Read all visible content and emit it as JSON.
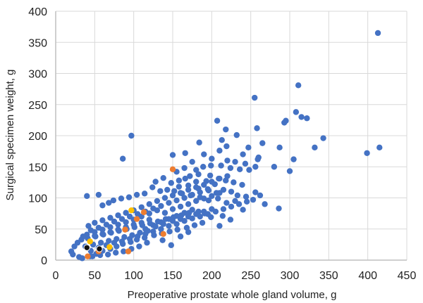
{
  "chart_data": {
    "type": "scatter",
    "title": "",
    "xlabel": "Preoperative prostate whole gland volume, g",
    "ylabel": "Surgical specimen weight, g",
    "xlim": [
      0,
      450
    ],
    "ylim": [
      0,
      400
    ],
    "xticks": [
      0,
      50,
      100,
      150,
      200,
      250,
      300,
      350,
      400,
      450
    ],
    "yticks": [
      0,
      50,
      100,
      150,
      200,
      250,
      300,
      350,
      400
    ],
    "grid": true,
    "legend": "none",
    "colors": {
      "series1": "#4472c4",
      "series2": "#ed7d31",
      "series3": "#ffc000",
      "series4": "#111111",
      "grid": "#d9d9d9",
      "axis": "#bfbfbf"
    },
    "series": [
      {
        "color": "#4472c4",
        "points": [
          [
            413,
            365
          ],
          [
            311,
            281
          ],
          [
            255,
            261
          ],
          [
            308,
            238
          ],
          [
            315,
            230
          ],
          [
            322,
            228
          ],
          [
            295,
            224
          ],
          [
            293,
            221
          ],
          [
            207,
            224
          ],
          [
            218,
            210
          ],
          [
            258,
            212
          ],
          [
            343,
            196
          ],
          [
            332,
            181
          ],
          [
            399,
            172
          ],
          [
            415,
            181
          ],
          [
            97,
            200
          ],
          [
            232,
            201
          ],
          [
            213,
            193
          ],
          [
            184,
            189
          ],
          [
            219,
            183
          ],
          [
            210,
            176
          ],
          [
            265,
            188
          ],
          [
            287,
            181
          ],
          [
            247,
            181
          ],
          [
            260,
            165
          ],
          [
            305,
            162
          ],
          [
            259,
            162
          ],
          [
            240,
            170
          ],
          [
            243,
            155
          ],
          [
            150,
            169
          ],
          [
            166,
            172
          ],
          [
            190,
            170
          ],
          [
            200,
            163
          ],
          [
            220,
            160
          ],
          [
            230,
            158
          ],
          [
            175,
            158
          ],
          [
            189,
            150
          ],
          [
            199,
            152
          ],
          [
            212,
            152
          ],
          [
            224,
            148
          ],
          [
            236,
            146
          ],
          [
            248,
            145
          ],
          [
            256,
            150
          ],
          [
            280,
            150
          ],
          [
            300,
            143
          ],
          [
            180,
            145
          ],
          [
            165,
            148
          ],
          [
            155,
            142
          ],
          [
            172,
            135
          ],
          [
            183,
            138
          ],
          [
            198,
            136
          ],
          [
            209,
            131
          ],
          [
            218,
            128
          ],
          [
            228,
            125
          ],
          [
            239,
            121
          ],
          [
            204,
            122
          ],
          [
            193,
            127
          ],
          [
            180,
            126
          ],
          [
            166,
            131
          ],
          [
            158,
            128
          ],
          [
            148,
            124
          ],
          [
            138,
            132
          ],
          [
            128,
            126
          ],
          [
            158,
            118
          ],
          [
            170,
            120
          ],
          [
            183,
            115
          ],
          [
            196,
            112
          ],
          [
            206,
            108
          ],
          [
            215,
            113
          ],
          [
            225,
            110
          ],
          [
            233,
            104
          ],
          [
            244,
            102
          ],
          [
            253,
            97
          ],
          [
            262,
            104
          ],
          [
            268,
            90
          ],
          [
            230,
            95
          ],
          [
            219,
            92
          ],
          [
            208,
            99
          ],
          [
            196,
            96
          ],
          [
            185,
            101
          ],
          [
            173,
            104
          ],
          [
            162,
            107
          ],
          [
            152,
            111
          ],
          [
            143,
            113
          ],
          [
            134,
            111
          ],
          [
            124,
            117
          ],
          [
            114,
            107
          ],
          [
            104,
            105
          ],
          [
            94,
            101
          ],
          [
            84,
            99
          ],
          [
            74,
            96
          ],
          [
            68,
            92
          ],
          [
            60,
            88
          ],
          [
            55,
            105
          ],
          [
            40,
            103
          ],
          [
            86,
            163
          ],
          [
            256,
            109
          ],
          [
            286,
            83
          ],
          [
            240,
            81
          ],
          [
            214,
            71
          ],
          [
            210,
            55
          ],
          [
            224,
            65
          ],
          [
            199,
            69
          ],
          [
            191,
            75
          ],
          [
            183,
            78
          ],
          [
            171,
            76
          ],
          [
            161,
            72
          ],
          [
            151,
            69
          ],
          [
            141,
            66
          ],
          [
            131,
            62
          ],
          [
            121,
            59
          ],
          [
            111,
            56
          ],
          [
            101,
            53
          ],
          [
            91,
            50
          ],
          [
            81,
            47
          ],
          [
            71,
            44
          ],
          [
            61,
            41
          ],
          [
            51,
            38
          ],
          [
            41,
            35
          ],
          [
            33,
            33
          ],
          [
            28,
            28
          ],
          [
            24,
            22
          ],
          [
            20,
            14
          ],
          [
            22,
            9
          ],
          [
            30,
            5
          ],
          [
            34,
            3
          ],
          [
            44,
            6
          ],
          [
            52,
            10
          ],
          [
            60,
            15
          ],
          [
            70,
            18
          ],
          [
            78,
            22
          ],
          [
            86,
            26
          ],
          [
            96,
            29
          ],
          [
            104,
            33
          ],
          [
            114,
            36
          ],
          [
            126,
            40
          ],
          [
            136,
            43
          ],
          [
            146,
            46
          ],
          [
            156,
            49
          ],
          [
            168,
            52
          ],
          [
            178,
            56
          ],
          [
            188,
            60
          ],
          [
            148,
            24
          ],
          [
            137,
            32
          ],
          [
            117,
            28
          ],
          [
            107,
            22
          ],
          [
            97,
            18
          ],
          [
            87,
            14
          ],
          [
            77,
            12
          ],
          [
            67,
            9
          ],
          [
            57,
            8
          ],
          [
            47,
            6
          ],
          [
            160,
            38
          ],
          [
            170,
            45
          ],
          [
            118,
            47
          ],
          [
            128,
            54
          ],
          [
            138,
            58
          ],
          [
            108,
            44
          ],
          [
            98,
            40
          ],
          [
            88,
            37
          ],
          [
            78,
            34
          ],
          [
            68,
            31
          ],
          [
            58,
            28
          ],
          [
            48,
            25
          ],
          [
            38,
            22
          ],
          [
            45,
            15
          ],
          [
            55,
            20
          ],
          [
            65,
            24
          ],
          [
            75,
            28
          ],
          [
            85,
            30
          ],
          [
            95,
            34
          ],
          [
            105,
            38
          ],
          [
            115,
            42
          ],
          [
            125,
            46
          ],
          [
            135,
            50
          ],
          [
            145,
            55
          ],
          [
            155,
            58
          ],
          [
            165,
            63
          ],
          [
            175,
            67
          ],
          [
            185,
            70
          ],
          [
            195,
            74
          ],
          [
            205,
            78
          ],
          [
            215,
            82
          ],
          [
            225,
            86
          ],
          [
            235,
            90
          ],
          [
            245,
            94
          ],
          [
            120,
            90
          ],
          [
            110,
            85
          ],
          [
            100,
            80
          ],
          [
            90,
            76
          ],
          [
            80,
            72
          ],
          [
            70,
            68
          ],
          [
            60,
            64
          ],
          [
            50,
            60
          ],
          [
            42,
            55
          ],
          [
            130,
            95
          ],
          [
            140,
            100
          ],
          [
            150,
            104
          ],
          [
            160,
            108
          ],
          [
            170,
            113
          ],
          [
            180,
            117
          ],
          [
            190,
            121
          ],
          [
            200,
            126
          ],
          [
            210,
            131
          ],
          [
            220,
            135
          ],
          [
            130,
            80
          ],
          [
            120,
            75
          ],
          [
            110,
            70
          ],
          [
            100,
            65
          ],
          [
            90,
            61
          ],
          [
            80,
            57
          ],
          [
            70,
            53
          ],
          [
            60,
            49
          ],
          [
            50,
            45
          ],
          [
            40,
            41
          ],
          [
            35,
            38
          ],
          [
            45,
            48
          ],
          [
            55,
            52
          ],
          [
            65,
            57
          ],
          [
            75,
            62
          ],
          [
            85,
            66
          ],
          [
            95,
            70
          ],
          [
            105,
            74
          ],
          [
            115,
            78
          ],
          [
            125,
            83
          ],
          [
            135,
            87
          ],
          [
            145,
            92
          ],
          [
            155,
            96
          ],
          [
            165,
            100
          ],
          [
            175,
            105
          ],
          [
            185,
            109
          ],
          [
            195,
            114
          ],
          [
            140,
            76
          ],
          [
            150,
            82
          ],
          [
            160,
            86
          ],
          [
            170,
            90
          ],
          [
            180,
            95
          ],
          [
            190,
            99
          ],
          [
            200,
            103
          ],
          [
            210,
            108
          ],
          [
            150,
            63
          ],
          [
            160,
            66
          ],
          [
            170,
            70
          ],
          [
            180,
            74
          ],
          [
            190,
            78
          ],
          [
            200,
            82
          ],
          [
            120,
            65
          ],
          [
            110,
            60
          ],
          [
            100,
            57
          ],
          [
            90,
            53
          ],
          [
            80,
            49
          ],
          [
            70,
            45
          ],
          [
            60,
            42
          ],
          [
            50,
            39
          ],
          [
            115,
            50
          ],
          [
            125,
            56
          ],
          [
            135,
            61
          ],
          [
            145,
            66
          ],
          [
            155,
            71
          ],
          [
            165,
            76
          ],
          [
            175,
            81
          ]
        ]
      },
      {
        "color": "#ed7d31",
        "points": [
          [
            150,
            146
          ],
          [
            113,
            77
          ],
          [
            89,
            49
          ],
          [
            104,
            66
          ],
          [
            138,
            42
          ],
          [
            93,
            14
          ],
          [
            55,
            14
          ],
          [
            41,
            6
          ]
        ]
      },
      {
        "color": "#ffc000",
        "points": [
          [
            97,
            80
          ],
          [
            69,
            21
          ],
          [
            44,
            30
          ]
        ]
      },
      {
        "color": "#111111",
        "points": [
          [
            40,
            20
          ],
          [
            56,
            18
          ]
        ]
      }
    ]
  }
}
